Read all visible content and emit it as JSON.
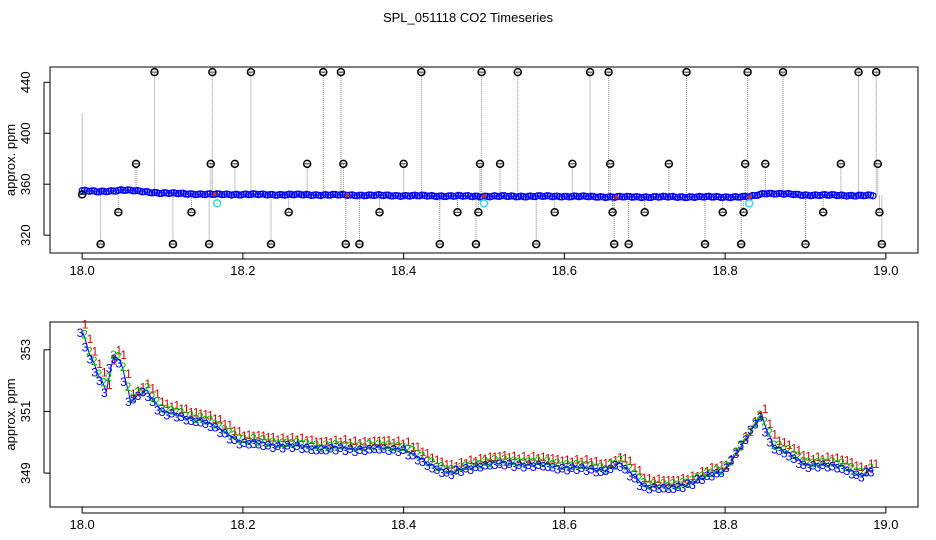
{
  "chart_data": [
    {
      "type": "scatter",
      "title": "SPL_051118  CO2 Timeseries",
      "xlabel": "",
      "ylabel": "approx. ppm",
      "xlim": [
        17.96,
        19.04
      ],
      "ylim": [
        306,
        452
      ],
      "xticks": [
        18.0,
        18.2,
        18.4,
        18.6,
        18.8,
        19.0
      ],
      "xtick_labels": [
        "18.0",
        "18.2",
        "18.4",
        "18.6",
        "18.8",
        "19.0"
      ],
      "yticks": [
        320,
        360,
        400,
        440
      ],
      "ytick_labels": [
        "320",
        "360",
        "400",
        "440"
      ],
      "grid": false,
      "colors": {
        "main": "#0000ff",
        "outlier": "#000000",
        "flag": "#33dddd",
        "drop": "#888888",
        "calib": "#cc3300"
      },
      "series": [
        {
          "name": "main",
          "x_start": 18.0,
          "x_end": 18.985,
          "step": 0.003,
          "knots": [
            [
              18.0,
              355
            ],
            [
              18.02,
              354
            ],
            [
              18.05,
              355.5
            ],
            [
              18.1,
              353
            ],
            [
              18.16,
              352
            ],
            [
              18.2,
              352
            ],
            [
              18.33,
              351.5
            ],
            [
              18.4,
              351
            ],
            [
              18.5,
              350.5
            ],
            [
              18.6,
              350.5
            ],
            [
              18.66,
              350
            ],
            [
              18.75,
              350
            ],
            [
              18.83,
              350
            ],
            [
              18.85,
              353
            ],
            [
              18.9,
              351.5
            ],
            [
              18.985,
              351
            ]
          ]
        },
        {
          "name": "outliers",
          "points": [
            [
              18.0,
              352
            ],
            [
              18.023,
              313
            ],
            [
              18.045,
              338
            ],
            [
              18.067,
              376
            ],
            [
              18.09,
              448
            ],
            [
              18.113,
              313
            ],
            [
              18.136,
              338
            ],
            [
              18.158,
              313
            ],
            [
              18.16,
              376
            ],
            [
              18.162,
              448
            ],
            [
              18.19,
              376
            ],
            [
              18.21,
              448
            ],
            [
              18.235,
              313
            ],
            [
              18.257,
              338
            ],
            [
              18.28,
              376
            ],
            [
              18.3,
              448
            ],
            [
              18.322,
              448
            ],
            [
              18.325,
              376
            ],
            [
              18.328,
              313
            ],
            [
              18.345,
              313
            ],
            [
              18.37,
              338
            ],
            [
              18.4,
              376
            ],
            [
              18.422,
              448
            ],
            [
              18.445,
              313
            ],
            [
              18.467,
              338
            ],
            [
              18.49,
              313
            ],
            [
              18.493,
              338
            ],
            [
              18.495,
              376
            ],
            [
              18.497,
              448
            ],
            [
              18.52,
              376
            ],
            [
              18.542,
              448
            ],
            [
              18.565,
              313
            ],
            [
              18.588,
              338
            ],
            [
              18.61,
              376
            ],
            [
              18.632,
              448
            ],
            [
              18.655,
              448
            ],
            [
              18.657,
              376
            ],
            [
              18.66,
              338
            ],
            [
              18.662,
              313
            ],
            [
              18.68,
              313
            ],
            [
              18.7,
              338
            ],
            [
              18.73,
              376
            ],
            [
              18.752,
              448
            ],
            [
              18.775,
              313
            ],
            [
              18.797,
              338
            ],
            [
              18.82,
              313
            ],
            [
              18.823,
              338
            ],
            [
              18.825,
              376
            ],
            [
              18.828,
              448
            ],
            [
              18.85,
              376
            ],
            [
              18.872,
              448
            ],
            [
              18.9,
              313
            ],
            [
              18.922,
              338
            ],
            [
              18.944,
              376
            ],
            [
              18.966,
              448
            ],
            [
              18.988,
              448
            ],
            [
              18.99,
              376
            ],
            [
              18.992,
              338
            ],
            [
              18.995,
              313
            ]
          ]
        },
        {
          "name": "flagged",
          "points": [
            [
              18.168,
              345
            ],
            [
              18.5,
              345
            ],
            [
              18.83,
              345
            ]
          ]
        }
      ]
    },
    {
      "type": "scatter",
      "title": "",
      "xlabel": "",
      "ylabel": "approx. ppm",
      "xlim": [
        17.96,
        19.04
      ],
      "ylim": [
        347.9,
        353.9
      ],
      "xticks": [
        18.0,
        18.2,
        18.4,
        18.6,
        18.8,
        19.0
      ],
      "xtick_labels": [
        "18.0",
        "18.2",
        "18.4",
        "18.6",
        "18.8",
        "19.0"
      ],
      "yticks": [
        349,
        351,
        353
      ],
      "ytick_labels": [
        "349",
        "351",
        "353"
      ],
      "grid": false,
      "marker_labels": [
        "1",
        "2",
        "3"
      ],
      "colors": {
        "s1": "#dd0000",
        "s2": "#00bb00",
        "s3": "#0000ff",
        "line": "#0000ff"
      },
      "series": [
        {
          "name": "ppm",
          "x_start": 18.0,
          "x_end": 18.985,
          "step": 0.003,
          "knots": [
            [
              18.0,
              353.6
            ],
            [
              18.01,
              352.8
            ],
            [
              18.02,
              352.2
            ],
            [
              18.03,
              351.7
            ],
            [
              18.04,
              352.9
            ],
            [
              18.05,
              352.5
            ],
            [
              18.06,
              351.3
            ],
            [
              18.08,
              351.7
            ],
            [
              18.1,
              351
            ],
            [
              18.13,
              350.8
            ],
            [
              18.15,
              350.7
            ],
            [
              18.18,
              350.3
            ],
            [
              18.2,
              350
            ],
            [
              18.25,
              349.9
            ],
            [
              18.3,
              349.8
            ],
            [
              18.35,
              349.8
            ],
            [
              18.4,
              349.8
            ],
            [
              18.43,
              349.3
            ],
            [
              18.46,
              349.0
            ],
            [
              18.5,
              349.3
            ],
            [
              18.55,
              349.3
            ],
            [
              18.6,
              349.2
            ],
            [
              18.65,
              349.1
            ],
            [
              18.67,
              349.3
            ],
            [
              18.7,
              348.6
            ],
            [
              18.73,
              348.5
            ],
            [
              18.76,
              348.7
            ],
            [
              18.8,
              349.1
            ],
            [
              18.83,
              350.2
            ],
            [
              18.845,
              350.9
            ],
            [
              18.86,
              349.9
            ],
            [
              18.88,
              349.6
            ],
            [
              18.9,
              349.3
            ],
            [
              18.95,
              349.2
            ],
            [
              18.97,
              348.9
            ],
            [
              18.985,
              349.1
            ]
          ]
        }
      ]
    }
  ]
}
